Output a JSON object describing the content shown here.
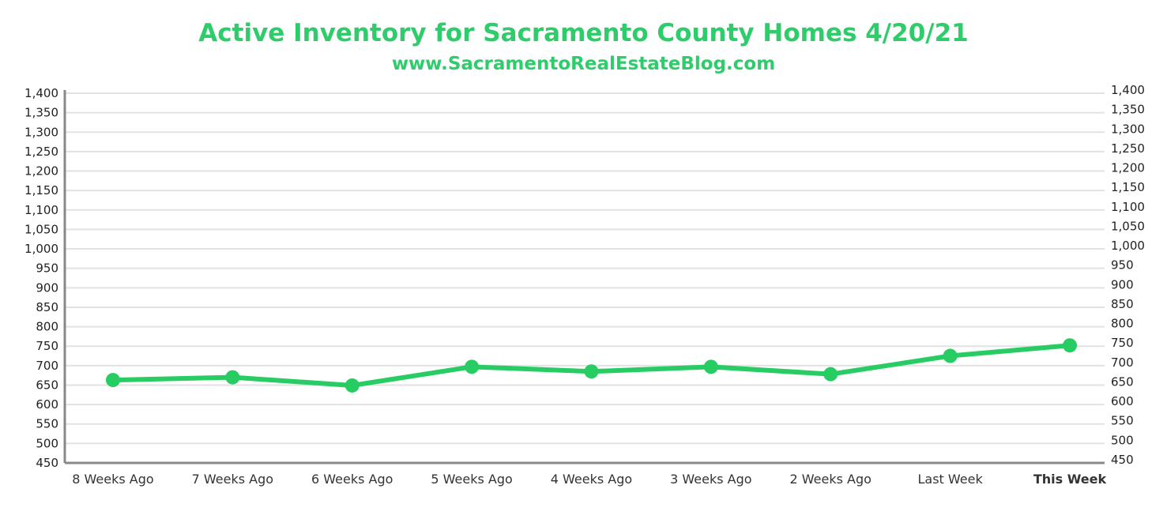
{
  "chart_data": {
    "type": "line",
    "title": "Active Inventory for Sacramento County Homes 4/20/21",
    "subtitle": "www.SacramentoRealEstateBlog.com",
    "categories": [
      "8 Weeks Ago",
      "7 Weeks Ago",
      "6 Weeks Ago",
      "5 Weeks Ago",
      "4 Weeks Ago",
      "3 Weeks Ago",
      "2 Weeks Ago",
      "Last Week",
      "This Week"
    ],
    "highlight_category": "This Week",
    "series": [
      {
        "name": "Active Inventory",
        "values": [
          663,
          670,
          649,
          697,
          685,
          697,
          678,
          725,
          752
        ]
      }
    ],
    "ylim": [
      450,
      1400
    ],
    "ytick_step": 50,
    "yticks": [
      "450",
      "500",
      "550",
      "600",
      "650",
      "700",
      "750",
      "800",
      "850",
      "900",
      "950",
      "1,000",
      "1,050",
      "1,100",
      "1,150",
      "1,200",
      "1,250",
      "1,300",
      "1,350",
      "1,400"
    ],
    "grid": true,
    "colors": {
      "line": "#27cc62",
      "title": "#2ecc6a",
      "highlight": "#2ecc6a",
      "grid": "#e2e2e2",
      "axis": "#888888"
    }
  }
}
